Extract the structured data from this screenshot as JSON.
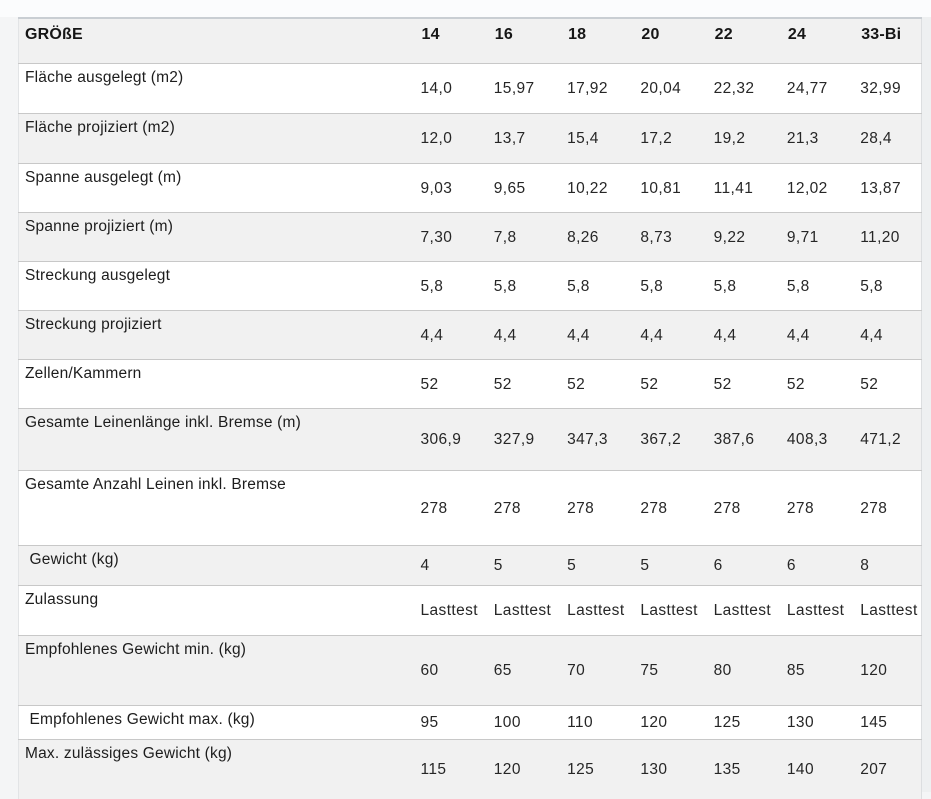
{
  "table": {
    "header": {
      "label": "GRÖßE",
      "sizes": [
        "14",
        "16",
        "18",
        "20",
        "22",
        "24",
        "33-Bi"
      ]
    },
    "rows": [
      {
        "label": "Fläche ausgelegt (m2)",
        "values": [
          "14,0",
          "15,97",
          "17,92",
          "20,04",
          "22,32",
          "24,77",
          "32,99"
        ]
      },
      {
        "label": "Fläche projiziert (m2)",
        "values": [
          "12,0",
          "13,7",
          "15,4",
          "17,2",
          "19,2",
          "21,3",
          "28,4"
        ]
      },
      {
        "label": "Spanne ausgelegt (m)",
        "values": [
          "9,03",
          "9,65",
          "10,22",
          "10,81",
          "11,41",
          "12,02",
          "13,87"
        ]
      },
      {
        "label": "Spanne projiziert (m)",
        "values": [
          "7,30",
          "7,8",
          "8,26",
          "8,73",
          "9,22",
          "9,71",
          "11,20"
        ]
      },
      {
        "label": "Streckung ausgelegt",
        "values": [
          "5,8",
          "5,8",
          "5,8",
          "5,8",
          "5,8",
          "5,8",
          "5,8"
        ]
      },
      {
        "label": "Streckung projiziert",
        "values": [
          "4,4",
          "4,4",
          "4,4",
          "4,4",
          "4,4",
          "4,4",
          "4,4"
        ]
      },
      {
        "label": "Zellen/Kammern",
        "values": [
          "52",
          "52",
          "52",
          "52",
          "52",
          "52",
          "52"
        ]
      },
      {
        "label": "Gesamte Leinenlänge inkl. Bremse (m)",
        "values": [
          "306,9",
          "327,9",
          "347,3",
          "367,2",
          "387,6",
          "408,3",
          "471,2"
        ]
      },
      {
        "label": "Gesamte Anzahl Leinen inkl. Bremse",
        "values": [
          "278",
          "278",
          "278",
          "278",
          "278",
          "278",
          "278"
        ]
      },
      {
        "label": " Gewicht (kg)",
        "values": [
          "4",
          "5",
          "5",
          "5",
          "6",
          "6",
          "8"
        ]
      },
      {
        "label": "Zulassung",
        "values": [
          "Lasttest",
          "Lasttest",
          "Lasttest",
          "Lasttest",
          "Lasttest",
          "Lasttest",
          "Lasttest"
        ]
      },
      {
        "label": "Empfohlenes Gewicht min. (kg)",
        "values": [
          "60",
          "65",
          "70",
          "75",
          "80",
          "85",
          "120"
        ]
      },
      {
        "label": " Empfohlenes Gewicht max. (kg)",
        "values": [
          "95",
          "100",
          "110",
          "120",
          "125",
          "130",
          "145"
        ]
      },
      {
        "label": "Max. zulässiges Gewicht (kg)",
        "values": [
          "115",
          "120",
          "125",
          "130",
          "135",
          "140",
          "207"
        ]
      }
    ],
    "colors": {
      "row_stripe": "#f1f1f1",
      "row_separator": "#c8c8c8",
      "text": "#212121"
    }
  }
}
